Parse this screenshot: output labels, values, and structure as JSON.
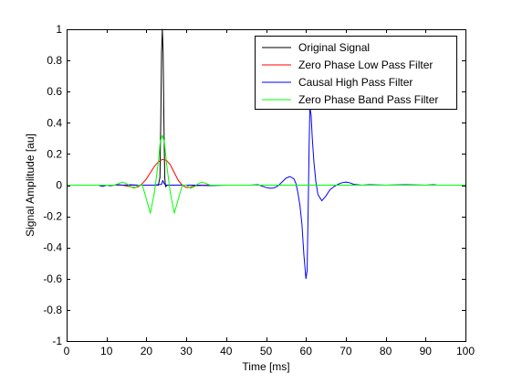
{
  "chart_data": {
    "type": "line",
    "title": "",
    "xlabel": "Time [ms]",
    "ylabel": "Signal Amplitude [au]",
    "xlim": [
      0,
      100
    ],
    "ylim": [
      -1,
      1
    ],
    "xticks": [
      0,
      10,
      20,
      30,
      40,
      50,
      60,
      70,
      80,
      90,
      100
    ],
    "yticks": [
      -1,
      -0.8,
      -0.6,
      -0.4,
      -0.2,
      0,
      0.2,
      0.4,
      0.6,
      0.8,
      1
    ],
    "ytick_labels": [
      "-1",
      "-0.8",
      "-0.6",
      "-0.4",
      "-0.2",
      "0",
      "0.2",
      "0.4",
      "0.6",
      "0.8",
      "1"
    ],
    "grid": false,
    "legend_position": "top-right",
    "series": [
      {
        "name": "Original Signal",
        "color": "#000000",
        "x": [
          0,
          23.0,
          23.4,
          23.6,
          23.8,
          24.0,
          24.2,
          24.4,
          24.6,
          24.8,
          25.2,
          100
        ],
        "y": [
          0,
          0,
          0.05,
          0.4,
          0.85,
          1.0,
          0.85,
          0.4,
          0.05,
          -0.01,
          0,
          0
        ]
      },
      {
        "name": "Zero Phase Low Pass Filter",
        "color": "#ff0000",
        "x": [
          0,
          14,
          16,
          17,
          18,
          19,
          20,
          21,
          22,
          23,
          24,
          25,
          26,
          27,
          28,
          29,
          30,
          31,
          32,
          34,
          100
        ],
        "y": [
          0,
          0,
          -0.01,
          -0.015,
          -0.01,
          0.01,
          0.04,
          0.08,
          0.12,
          0.15,
          0.165,
          0.16,
          0.13,
          0.08,
          0.03,
          0.0,
          -0.015,
          -0.015,
          -0.005,
          0,
          0
        ]
      },
      {
        "name": "Causal High Pass Filter",
        "color": "#0000ff",
        "x": [
          0,
          8,
          9,
          10,
          11,
          12,
          13,
          14,
          16,
          18,
          22,
          23.8,
          24.1,
          24.5,
          25,
          30,
          36,
          40,
          46,
          48,
          50,
          51,
          52,
          53,
          54,
          55,
          56,
          57,
          57.5,
          58,
          58.5,
          59,
          59.5,
          60,
          60.3,
          60.6,
          60.8,
          61.0,
          61.3,
          61.6,
          62,
          62.5,
          63,
          64,
          65,
          66,
          67,
          68,
          69,
          70,
          71,
          72,
          74,
          76,
          80,
          85,
          90,
          92,
          93,
          100
        ],
        "y": [
          0,
          0,
          -0.008,
          0,
          -0.004,
          0,
          0.003,
          0,
          0.002,
          0,
          0,
          0.005,
          0.03,
          0.008,
          0,
          0,
          -0.003,
          0,
          0,
          0.003,
          -0.015,
          -0.02,
          -0.018,
          -0.005,
          0.02,
          0.045,
          0.055,
          0.04,
          0.01,
          -0.05,
          -0.13,
          -0.25,
          -0.45,
          -0.6,
          -0.55,
          -0.1,
          0.25,
          0.5,
          0.45,
          0.3,
          0.15,
          0.02,
          -0.06,
          -0.1,
          -0.07,
          -0.03,
          -0.01,
          0.005,
          0.015,
          0.02,
          0.015,
          0.005,
          0,
          0.003,
          0,
          0.003,
          0,
          0.003,
          0,
          0
        ]
      },
      {
        "name": "Zero Phase Band Pass Filter",
        "color": "#00ff00",
        "x": [
          0,
          12,
          13,
          14,
          15,
          16,
          17,
          18,
          19,
          20,
          21,
          22,
          23,
          23.5,
          24,
          24.5,
          25,
          26,
          27,
          28,
          29,
          30,
          31,
          32,
          33,
          34,
          36,
          100
        ],
        "y": [
          0,
          0,
          0.01,
          0.02,
          0.01,
          -0.01,
          -0.02,
          0.0,
          0.0,
          -0.09,
          -0.18,
          -0.05,
          0.15,
          0.28,
          0.32,
          0.28,
          0.15,
          -0.05,
          -0.18,
          -0.09,
          0.0,
          0.0,
          -0.02,
          -0.01,
          0.01,
          0.02,
          0,
          0
        ]
      }
    ]
  }
}
